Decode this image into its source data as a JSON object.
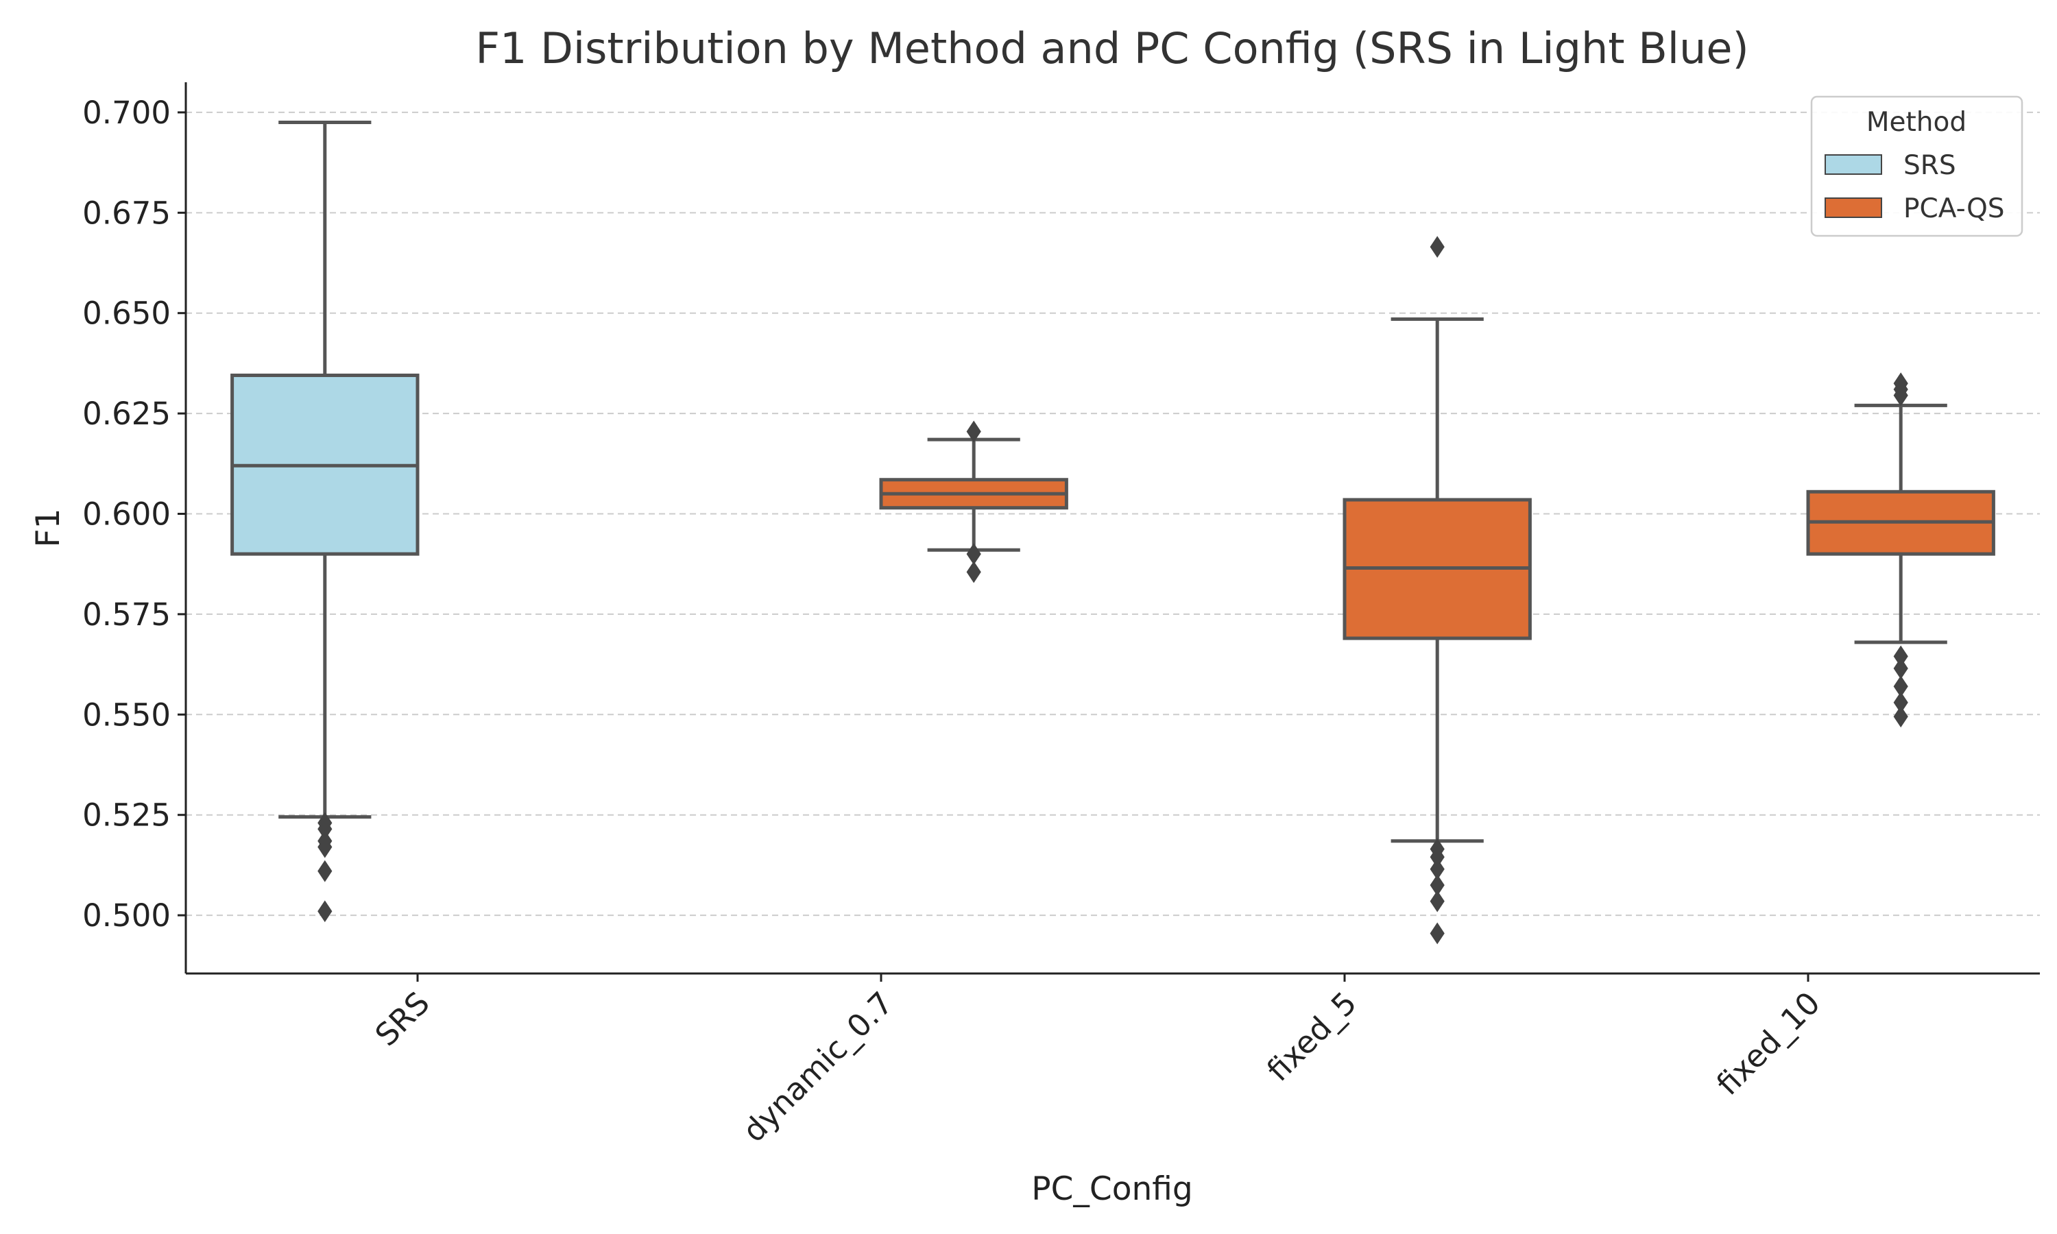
{
  "chart_data": {
    "type": "boxplot",
    "title": "F1 Distribution by Method and PC Config (SRS in Light Blue)",
    "xlabel": "PC_Config",
    "ylabel": "F1",
    "categories": [
      "SRS",
      "dynamic_0.7",
      "fixed_5",
      "fixed_10"
    ],
    "ylim": [
      0.4855,
      0.7075
    ],
    "yticks": [
      "0.500",
      "0.525",
      "0.550",
      "0.575",
      "0.600",
      "0.625",
      "0.650",
      "0.675",
      "0.700"
    ],
    "grid": "horizontal dashed",
    "legend": {
      "title": "Method",
      "placement": "top-right",
      "entries": [
        {
          "name": "SRS",
          "color": "#add8e6"
        },
        {
          "name": "PCA-QS",
          "color": "#dd6e35"
        }
      ]
    },
    "series": [
      {
        "name": "SRS",
        "color": "#add8e6",
        "boxes": [
          {
            "category": "SRS",
            "whisker_low": 0.5245,
            "q1": 0.59,
            "median": 0.612,
            "q3": 0.6345,
            "whisker_high": 0.6975,
            "outliers": [
              0.523,
              0.5215,
              0.5185,
              0.517,
              0.511,
              0.501
            ]
          }
        ]
      },
      {
        "name": "PCA-QS",
        "color": "#dd6e35",
        "boxes": [
          {
            "category": "dynamic_0.7",
            "whisker_low": 0.591,
            "q1": 0.6015,
            "median": 0.605,
            "q3": 0.6085,
            "whisker_high": 0.6185,
            "outliers": [
              0.6205,
              0.59,
              0.5855
            ]
          },
          {
            "category": "fixed_5",
            "whisker_low": 0.5185,
            "q1": 0.569,
            "median": 0.5865,
            "q3": 0.6035,
            "whisker_high": 0.6485,
            "outliers": [
              0.6665,
              0.5165,
              0.5145,
              0.5115,
              0.5075,
              0.5035,
              0.4955
            ]
          },
          {
            "category": "fixed_10",
            "whisker_low": 0.568,
            "q1": 0.59,
            "median": 0.598,
            "q3": 0.6055,
            "whisker_high": 0.627,
            "outliers": [
              0.6325,
              0.631,
              0.6295,
              0.5645,
              0.5615,
              0.557,
              0.553,
              0.5495
            ]
          }
        ]
      }
    ]
  }
}
